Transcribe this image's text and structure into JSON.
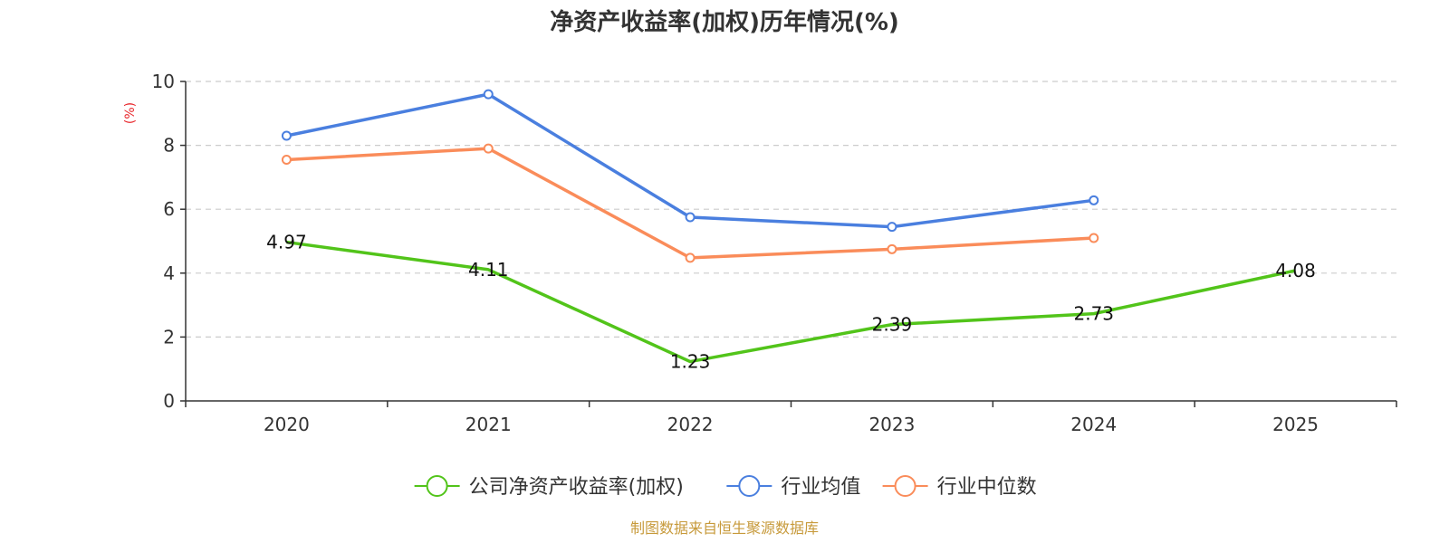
{
  "chart_data": {
    "type": "line",
    "title": "净资产收益率(加权)历年情况(%)",
    "ylabel": "(%)",
    "xlabel": "",
    "ylim": [
      0,
      10
    ],
    "y_ticks": [
      0,
      2,
      4,
      6,
      8,
      10
    ],
    "grid": true,
    "categories": [
      "2020",
      "2021",
      "2022",
      "2023",
      "2024",
      "2025"
    ],
    "series": [
      {
        "name": "公司净资产收益率(加权)",
        "color": "#52c41a",
        "values": [
          4.97,
          4.11,
          1.23,
          2.39,
          2.73,
          4.08
        ],
        "labels": [
          "4.97",
          "4.11",
          "1.23",
          "2.39",
          "2.73",
          "4.08"
        ],
        "markers": false
      },
      {
        "name": "行业均值",
        "color": "#4a7fdf",
        "values": [
          8.3,
          9.6,
          5.75,
          5.45,
          6.28,
          null
        ],
        "markers": true
      },
      {
        "name": "行业中位数",
        "color": "#fa8c5a",
        "values": [
          7.55,
          7.9,
          4.48,
          4.75,
          5.1,
          null
        ],
        "markers": true
      }
    ],
    "legend_position": "bottom"
  },
  "source": "制图数据来自恒生聚源数据库"
}
